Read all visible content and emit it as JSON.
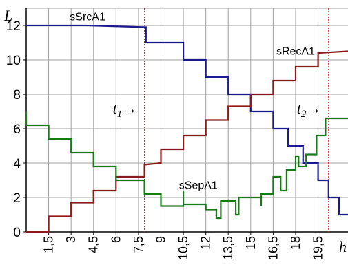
{
  "chart_data": {
    "type": "line",
    "xlabel": "h",
    "ylabel": "L",
    "xlim": [
      0,
      21.5
    ],
    "ylim": [
      0,
      13
    ],
    "x_ticks": [
      {
        "value": 1.5,
        "label": "1,5"
      },
      {
        "value": 3,
        "label": "3"
      },
      {
        "value": 4.5,
        "label": "4,5"
      },
      {
        "value": 6,
        "label": "6"
      },
      {
        "value": 7.5,
        "label": "7,5"
      },
      {
        "value": 9,
        "label": "9"
      },
      {
        "value": 10.5,
        "label": "10,5"
      },
      {
        "value": 12,
        "label": "12"
      },
      {
        "value": 13.5,
        "label": "13,5"
      },
      {
        "value": 15,
        "label": "15"
      },
      {
        "value": 16.5,
        "label": "16,5"
      },
      {
        "value": 18,
        "label": "18"
      },
      {
        "value": 19.5,
        "label": "19,5"
      }
    ],
    "y_ticks": [
      {
        "value": 0,
        "label": "0"
      },
      {
        "value": 2,
        "label": "2"
      },
      {
        "value": 4,
        "label": "4"
      },
      {
        "value": 6,
        "label": "6"
      },
      {
        "value": 8,
        "label": "8"
      },
      {
        "value": 10,
        "label": "10"
      },
      {
        "value": 12,
        "label": "12"
      }
    ],
    "grid": true,
    "series": [
      {
        "name": "sSrcA1",
        "color": "#1a1a8c",
        "points": [
          [
            0,
            12
          ],
          [
            4,
            12
          ],
          [
            8,
            11.9
          ],
          [
            8,
            11
          ],
          [
            10.5,
            11
          ],
          [
            10.5,
            10
          ],
          [
            12,
            10
          ],
          [
            12,
            9
          ],
          [
            13.5,
            9
          ],
          [
            13.5,
            8
          ],
          [
            15,
            8
          ],
          [
            15,
            7
          ],
          [
            16.5,
            7
          ],
          [
            16.5,
            6
          ],
          [
            17.5,
            6
          ],
          [
            17.5,
            5
          ],
          [
            18.5,
            5
          ],
          [
            18.5,
            4
          ],
          [
            19.5,
            4
          ],
          [
            19.5,
            3
          ],
          [
            20.2,
            3
          ],
          [
            20.2,
            2
          ],
          [
            20.9,
            2
          ],
          [
            20.9,
            1
          ],
          [
            21.5,
            1
          ]
        ]
      },
      {
        "name": "sRecA1",
        "color": "#8b1a1a",
        "points": [
          [
            0,
            0
          ],
          [
            1.5,
            0
          ],
          [
            1.5,
            0.9
          ],
          [
            3,
            0.9
          ],
          [
            3,
            1.7
          ],
          [
            4.5,
            1.7
          ],
          [
            4.5,
            2.4
          ],
          [
            6,
            2.4
          ],
          [
            6,
            3.2
          ],
          [
            7.9,
            3.2
          ],
          [
            7.9,
            3.9
          ],
          [
            9,
            4
          ],
          [
            9,
            4.8
          ],
          [
            10.5,
            4.8
          ],
          [
            10.5,
            5.6
          ],
          [
            12,
            5.6
          ],
          [
            12,
            6.5
          ],
          [
            13.5,
            6.5
          ],
          [
            13.5,
            7.3
          ],
          [
            15,
            7.3
          ],
          [
            15,
            8
          ],
          [
            16.5,
            8
          ],
          [
            16.5,
            8.8
          ],
          [
            18,
            8.8
          ],
          [
            18,
            9.6
          ],
          [
            19.5,
            9.6
          ],
          [
            19.5,
            10.4
          ],
          [
            21.5,
            10.5
          ]
        ]
      },
      {
        "name": "sSepA1",
        "color": "#1a7a1a",
        "points": [
          [
            0,
            7
          ],
          [
            0,
            6.2
          ],
          [
            1.5,
            6.2
          ],
          [
            1.5,
            5.4
          ],
          [
            3,
            5.4
          ],
          [
            3,
            4.6
          ],
          [
            4.5,
            4.6
          ],
          [
            4.5,
            3.8
          ],
          [
            6,
            3.8
          ],
          [
            6,
            3
          ],
          [
            7.9,
            3
          ],
          [
            7.9,
            2.2
          ],
          [
            9,
            2.2
          ],
          [
            9,
            1.5
          ],
          [
            10.5,
            1.5
          ],
          [
            10.5,
            2.4
          ],
          [
            10.5,
            1.6
          ],
          [
            12,
            1.6
          ],
          [
            12,
            1.3
          ],
          [
            12.7,
            1.3
          ],
          [
            12.7,
            0.8
          ],
          [
            13,
            0.8
          ],
          [
            13,
            1.8
          ],
          [
            14,
            1.8
          ],
          [
            14,
            1
          ],
          [
            14.2,
            1
          ],
          [
            14.2,
            2
          ],
          [
            15.7,
            2
          ],
          [
            15.7,
            1.5
          ],
          [
            15.7,
            2.2
          ],
          [
            16.5,
            2.2
          ],
          [
            16.5,
            3.2
          ],
          [
            17,
            3.2
          ],
          [
            17,
            2.4
          ],
          [
            17.4,
            2.4
          ],
          [
            17.4,
            3.6
          ],
          [
            18,
            3.6
          ],
          [
            18,
            4.4
          ],
          [
            18.2,
            4.4
          ],
          [
            18.2,
            3.8
          ],
          [
            18.7,
            3.8
          ],
          [
            18.7,
            4.5
          ],
          [
            19.4,
            4.5
          ],
          [
            19.4,
            5.6
          ],
          [
            20,
            5.6
          ],
          [
            20,
            6.6
          ],
          [
            21.5,
            6.6
          ]
        ]
      }
    ],
    "annotations": [
      {
        "kind": "vline",
        "x": 7.9,
        "color": "#e03030",
        "label": "t",
        "sub": "1",
        "arrow": "→",
        "label_y": 7.2
      },
      {
        "kind": "vline",
        "x": 20.2,
        "color": "#e03030",
        "label": "t",
        "sub": "2",
        "arrow": "→",
        "label_y": 7.2
      }
    ]
  }
}
